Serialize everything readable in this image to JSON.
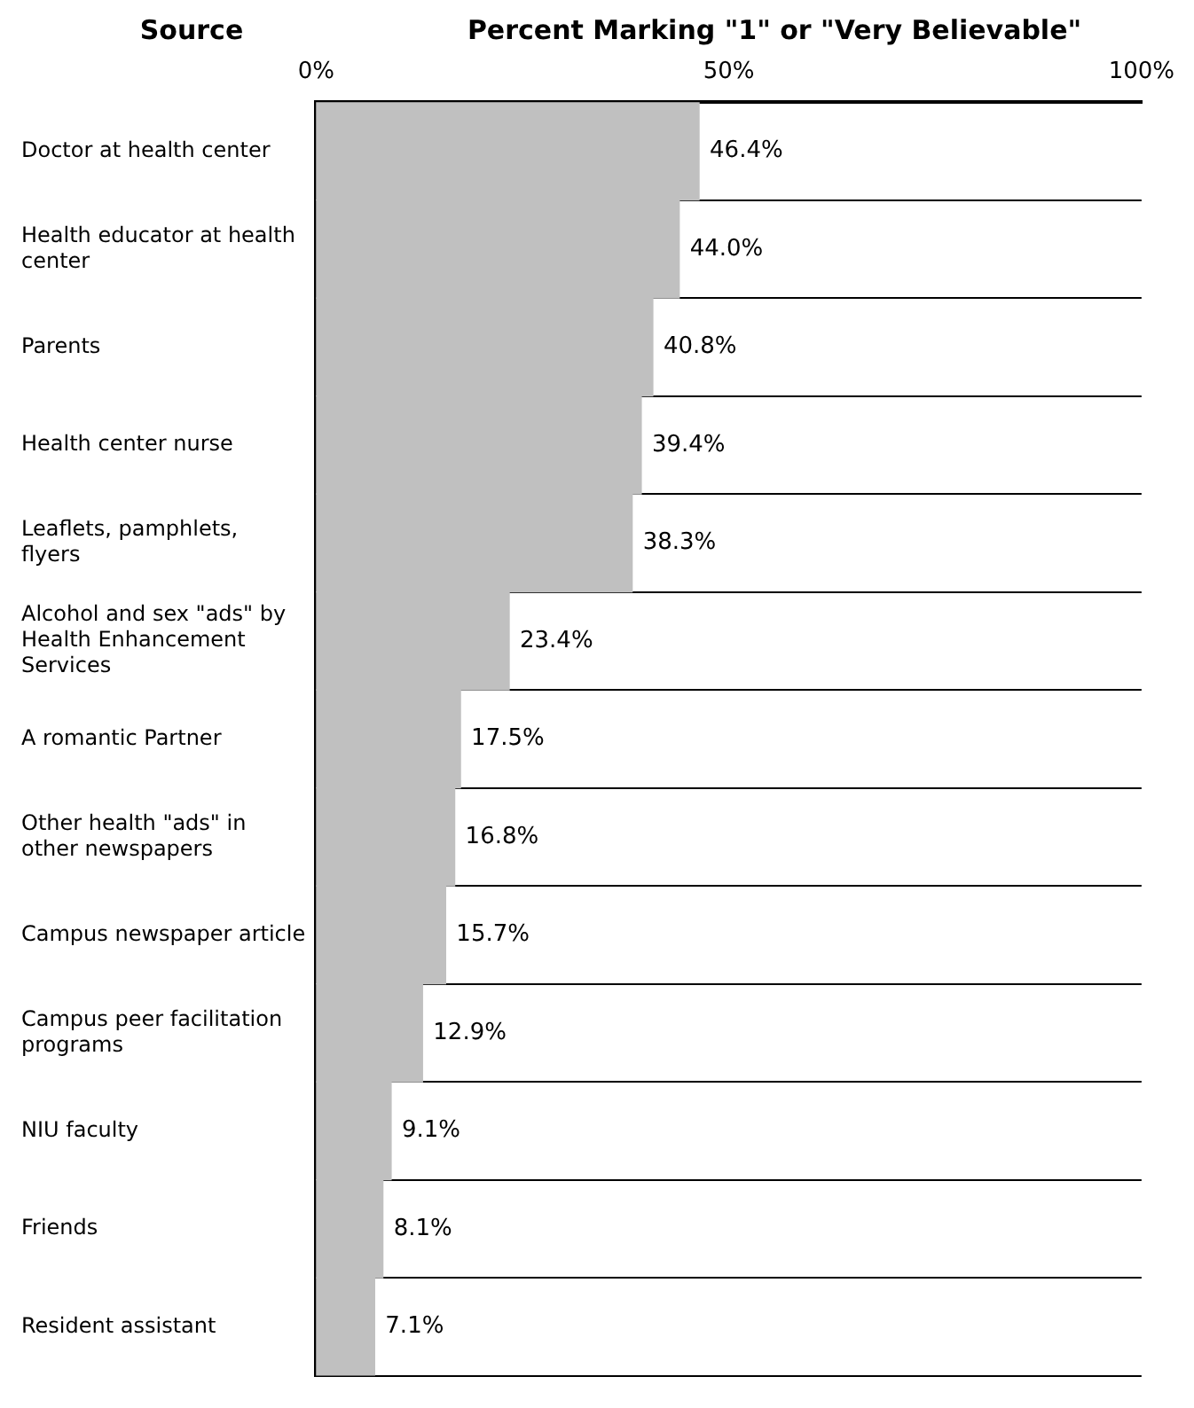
{
  "chart_data": {
    "type": "bar",
    "orientation": "horizontal",
    "title": "Percent Marking \"1\" or \"Very Believable\"",
    "ylabel": "Source",
    "categories": [
      "Doctor at health center",
      "Health educator at health center",
      "Parents",
      "Health center nurse",
      "Leaflets, pamphlets, flyers",
      "Alcohol and sex \"ads\" by Health Enhancement Services",
      "A romantic Partner",
      "Other health \"ads\" in other newspapers",
      "Campus newspaper article",
      "Campus peer facilitation programs",
      "NIU faculty",
      "Friends",
      "Resident assistant"
    ],
    "values": [
      46.4,
      44.0,
      40.8,
      39.4,
      38.3,
      23.4,
      17.5,
      16.8,
      15.7,
      12.9,
      9.1,
      8.1,
      7.1
    ],
    "value_labels": [
      "46.4%",
      "44.0%",
      "40.8%",
      "39.4%",
      "38.3%",
      "23.4%",
      "17.5%",
      "16.8%",
      "15.7%",
      "12.9%",
      "9.1%",
      "8.1%",
      "7.1%"
    ],
    "color": "#c0c0c0",
    "xlim": [
      0,
      100
    ],
    "xticks": [
      {
        "value": 0,
        "label": "0%"
      },
      {
        "value": 50,
        "label": "50%"
      },
      {
        "value": 100,
        "label": "100%"
      }
    ],
    "grid": "y"
  }
}
